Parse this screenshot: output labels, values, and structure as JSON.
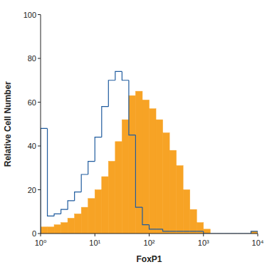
{
  "chart_data": {
    "type": "histogram",
    "x_label": "FoxP1",
    "y_label": "Relative Cell Number",
    "log": "x",
    "bins": [
      1,
      1.334,
      1.778,
      2.371,
      3.162,
      4.217,
      5.623,
      7.499,
      10,
      13.34,
      17.78,
      23.71,
      31.62,
      42.17,
      56.23,
      74.99,
      100,
      133.4,
      177.8,
      237.1,
      316.2,
      421.7,
      562.3,
      749.9,
      1000,
      1334,
      1778,
      2371,
      3162,
      4217,
      5623,
      7499,
      10000
    ],
    "series": [
      {
        "type": "area",
        "color": "#f7a325",
        "values": [
          3,
          3,
          4,
          5,
          7,
          9,
          12,
          16,
          20,
          26,
          33,
          42,
          52,
          63,
          65,
          61,
          57,
          52,
          46,
          38,
          31,
          20,
          11,
          5,
          2,
          0,
          0,
          0,
          0,
          0,
          0,
          1
        ]
      },
      {
        "type": "line",
        "color": "#1f5b9e",
        "values": [
          48,
          8,
          9,
          11,
          15,
          19,
          27,
          33,
          44,
          58,
          70,
          74,
          70,
          45,
          12,
          4,
          2,
          2,
          1,
          1,
          1,
          1,
          1,
          1,
          0,
          0,
          0,
          0,
          0,
          0,
          0,
          1
        ]
      }
    ],
    "xlim": [
      1,
      10000
    ],
    "xticks": [
      {
        "value": 1,
        "label": "10⁰"
      },
      {
        "value": 10,
        "label": "10¹"
      },
      {
        "value": 100,
        "label": "10²"
      },
      {
        "value": 1000,
        "label": "10³"
      },
      {
        "value": 10000,
        "label": "10⁴"
      }
    ],
    "ylim": [
      0,
      100
    ],
    "yticks": [
      0,
      20,
      40,
      60,
      80,
      100
    ]
  }
}
